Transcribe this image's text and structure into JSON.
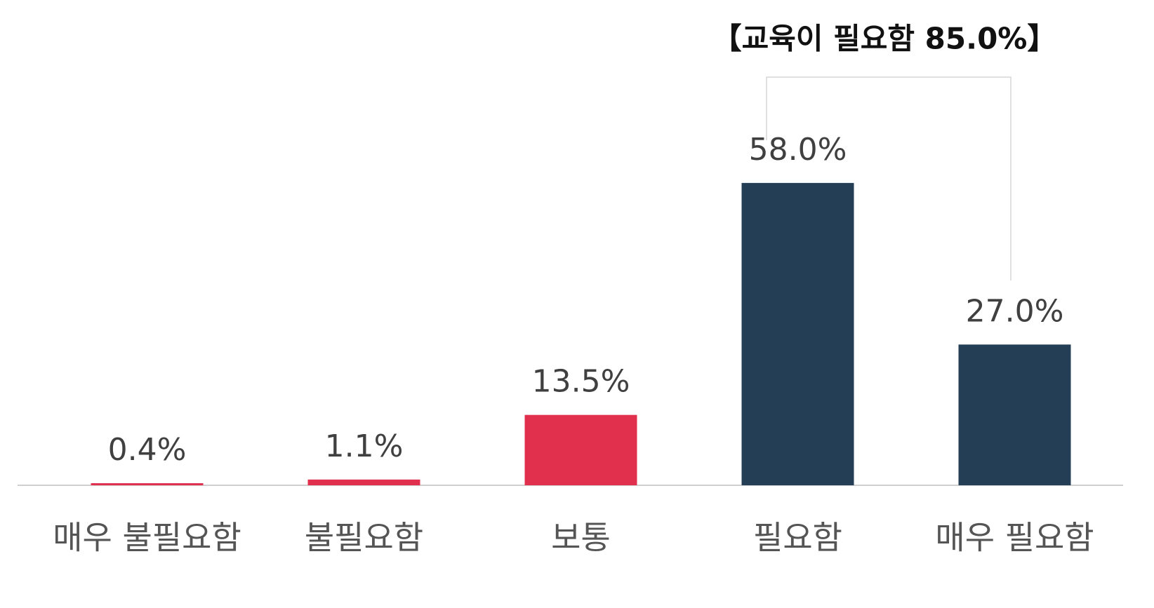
{
  "chart_data": {
    "type": "bar",
    "annotation": "【교육이 필요함 85.0%】",
    "categories": [
      "매우 불필요함",
      "불필요함",
      "보통",
      "필요함",
      "매우 필요함"
    ],
    "values": [
      0.4,
      1.1,
      13.5,
      58.0,
      27.0
    ],
    "value_labels": [
      "0.4%",
      "1.1%",
      "13.5%",
      "58.0%",
      "27.0%"
    ],
    "colors": [
      "#e0304e",
      "#e0304e",
      "#e0304e",
      "#243e55",
      "#243e55"
    ],
    "ylim": [
      0,
      60
    ]
  }
}
